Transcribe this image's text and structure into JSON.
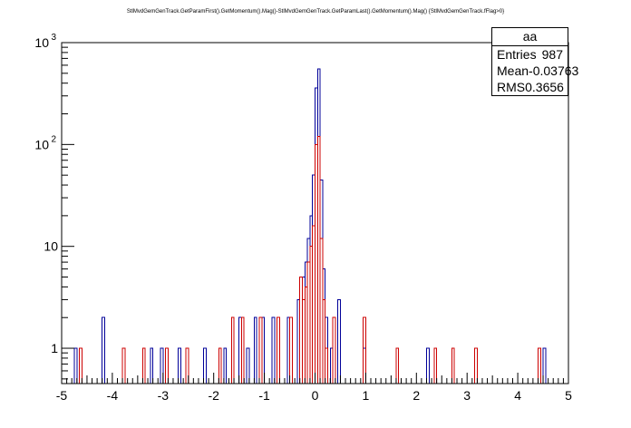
{
  "title": "StlMvdGemGenTrack.GetParamFirst().GetMomentum().Mag()-StlMvdGemGenTrack.GetParamLast().GetMomentum().Mag() {StlMvdGemGenTrack.fFlag>0}",
  "stats": {
    "name": "aa",
    "rows": [
      {
        "label": "Entries",
        "value": "987"
      },
      {
        "label": "Mean",
        "value": "-0.03763"
      },
      {
        "label": "RMS",
        "value": "0.3656"
      }
    ]
  },
  "colors": {
    "blue": "#000099",
    "red": "#cc0000",
    "axis": "#000000"
  },
  "chart_data": {
    "type": "histogram",
    "log_y": true,
    "xlim": [
      -5,
      5
    ],
    "ylim": [
      0.45,
      1000
    ],
    "bin_width": 0.05,
    "x_ticks": [
      "-5",
      "-4",
      "-3",
      "-2",
      "-1",
      "0",
      "1",
      "2",
      "3",
      "4",
      "5"
    ],
    "y_ticks": [
      {
        "value": 1,
        "label": "1"
      },
      {
        "value": 10,
        "label": "10"
      },
      {
        "value": 100,
        "label": "10",
        "exp": "2"
      },
      {
        "value": 1000,
        "label": "10",
        "exp": "3"
      }
    ],
    "series": [
      {
        "color": "blue",
        "bins": [
          {
            "x": -4.75,
            "y": 1
          },
          {
            "x": -4.2,
            "y": 2
          },
          {
            "x": -3.25,
            "y": 1
          },
          {
            "x": -3.05,
            "y": 1
          },
          {
            "x": -2.7,
            "y": 1
          },
          {
            "x": -2.2,
            "y": 1
          },
          {
            "x": -1.8,
            "y": 1
          },
          {
            "x": -1.5,
            "y": 2
          },
          {
            "x": -1.35,
            "y": 1
          },
          {
            "x": -1.2,
            "y": 2
          },
          {
            "x": -1.05,
            "y": 2
          },
          {
            "x": -0.85,
            "y": 2
          },
          {
            "x": -0.55,
            "y": 2
          },
          {
            "x": -0.35,
            "y": 3
          },
          {
            "x": -0.25,
            "y": 5
          },
          {
            "x": -0.2,
            "y": 7
          },
          {
            "x": -0.15,
            "y": 12
          },
          {
            "x": -0.1,
            "y": 20
          },
          {
            "x": -0.05,
            "y": 50
          },
          {
            "x": 0.0,
            "y": 360
          },
          {
            "x": 0.05,
            "y": 550
          },
          {
            "x": 0.1,
            "y": 45
          },
          {
            "x": 0.15,
            "y": 6
          },
          {
            "x": 0.2,
            "y": 2
          },
          {
            "x": 0.3,
            "y": 1
          },
          {
            "x": 0.45,
            "y": 3
          },
          {
            "x": 0.95,
            "y": 1
          },
          {
            "x": 2.2,
            "y": 1
          },
          {
            "x": 4.5,
            "y": 1
          }
        ]
      },
      {
        "color": "red",
        "bins": [
          {
            "x": -4.65,
            "y": 1
          },
          {
            "x": -3.8,
            "y": 1
          },
          {
            "x": -3.4,
            "y": 1
          },
          {
            "x": -2.95,
            "y": 1
          },
          {
            "x": -2.55,
            "y": 1
          },
          {
            "x": -1.9,
            "y": 1
          },
          {
            "x": -1.65,
            "y": 2
          },
          {
            "x": -1.45,
            "y": 2
          },
          {
            "x": -1.1,
            "y": 2
          },
          {
            "x": -0.75,
            "y": 2
          },
          {
            "x": -0.5,
            "y": 2
          },
          {
            "x": -0.3,
            "y": 5
          },
          {
            "x": -0.25,
            "y": 3
          },
          {
            "x": -0.2,
            "y": 4
          },
          {
            "x": -0.15,
            "y": 7
          },
          {
            "x": -0.1,
            "y": 10
          },
          {
            "x": -0.05,
            "y": 16
          },
          {
            "x": 0.0,
            "y": 100
          },
          {
            "x": 0.05,
            "y": 120
          },
          {
            "x": 0.1,
            "y": 12
          },
          {
            "x": 0.15,
            "y": 3
          },
          {
            "x": 0.2,
            "y": 1
          },
          {
            "x": 0.35,
            "y": 2
          },
          {
            "x": 0.95,
            "y": 2
          },
          {
            "x": 1.6,
            "y": 1
          },
          {
            "x": 2.35,
            "y": 1
          },
          {
            "x": 2.7,
            "y": 1
          },
          {
            "x": 3.15,
            "y": 1
          },
          {
            "x": 4.4,
            "y": 1
          }
        ]
      }
    ]
  }
}
